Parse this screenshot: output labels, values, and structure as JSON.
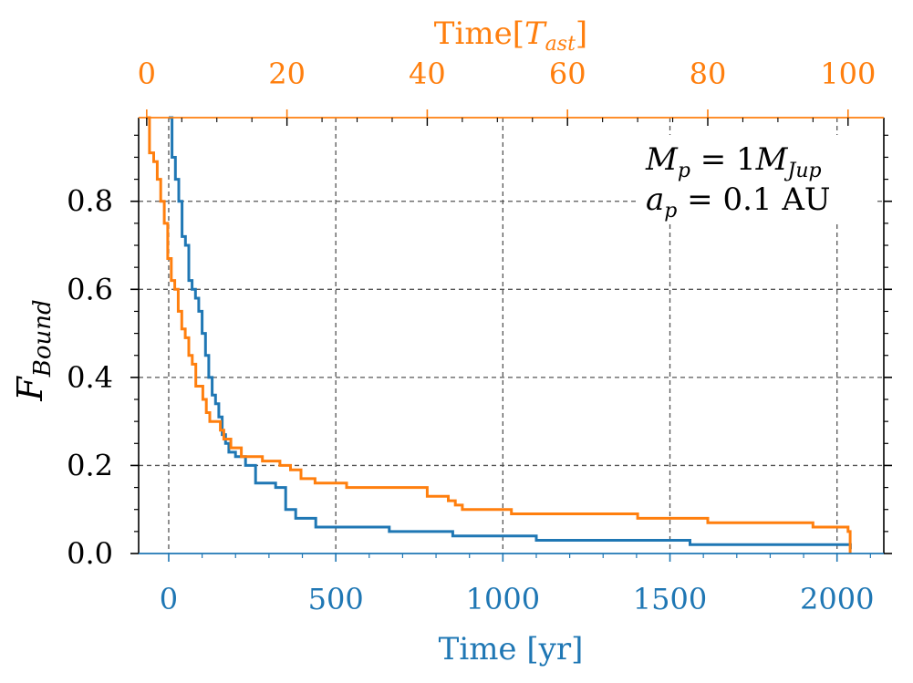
{
  "chart_data": {
    "type": "line",
    "xlabel": "Time [yr]",
    "x2label": "Time[T_ast]",
    "x2label_parts": {
      "main": "Time[",
      "T": "T",
      "sub": "ast",
      "close": "]"
    },
    "ylabel": "F_Bound",
    "ylabel_parts": {
      "F": "F",
      "sub": "Bound"
    },
    "xlim": [
      -90,
      2140
    ],
    "x2lim": [
      -1.15,
      105.1
    ],
    "ylim": [
      0.0,
      0.99
    ],
    "xticks": [
      0,
      500,
      1000,
      1500,
      2000
    ],
    "xtick_labels": [
      "0",
      "500",
      "1000",
      "1500",
      "2000"
    ],
    "x2ticks": [
      0,
      20,
      40,
      60,
      80,
      100
    ],
    "x2tick_labels": [
      "0",
      "20",
      "40",
      "60",
      "80",
      "100"
    ],
    "yticks": [
      0.0,
      0.2,
      0.4,
      0.6,
      0.8
    ],
    "ytick_labels": [
      "0.0",
      "0.2",
      "0.4",
      "0.6",
      "0.8"
    ],
    "grid": true,
    "annotation": {
      "line1": {
        "var": "M",
        "var_sub": "p",
        "eq": " = 1",
        "unit": "M",
        "unit_sub": "Jup"
      },
      "line2": {
        "var": "a",
        "var_sub": "p",
        "eq": " = 0.1 AU"
      },
      "placement": "top-right"
    },
    "series": [
      {
        "name": "Time [yr]",
        "axis": "bottom",
        "color": "#1f77b4",
        "x": [
          0,
          10,
          20,
          30,
          40,
          50,
          60,
          70,
          80,
          90,
          100,
          110,
          120,
          130,
          140,
          150,
          160,
          170,
          180,
          200,
          230,
          260,
          320,
          350,
          380,
          440,
          660,
          850,
          1100,
          1560,
          2040
        ],
        "y": [
          0.99,
          0.9,
          0.85,
          0.8,
          0.72,
          0.7,
          0.62,
          0.6,
          0.58,
          0.55,
          0.5,
          0.45,
          0.4,
          0.36,
          0.34,
          0.31,
          0.27,
          0.25,
          0.23,
          0.22,
          0.2,
          0.16,
          0.15,
          0.1,
          0.08,
          0.06,
          0.05,
          0.04,
          0.03,
          0.02,
          0.01
        ]
      },
      {
        "name": "Time[T_ast]",
        "axis": "top",
        "color": "#ff7f0e",
        "x": [
          0.0,
          0.4,
          1.0,
          1.5,
          2.0,
          2.5,
          3.0,
          3.5,
          4.0,
          4.5,
          5.0,
          5.5,
          6.0,
          6.5,
          7.0,
          8.0,
          8.5,
          9.0,
          10.5,
          11.0,
          12.0,
          13.5,
          16.5,
          19.0,
          20.5,
          22.0,
          24.0,
          28.5,
          40.0,
          43.0,
          44.0,
          45.0,
          52.0,
          70.0,
          80.0,
          95.0,
          100.0,
          100.3
        ],
        "y": [
          0.99,
          0.91,
          0.89,
          0.85,
          0.8,
          0.75,
          0.67,
          0.62,
          0.6,
          0.55,
          0.51,
          0.49,
          0.45,
          0.43,
          0.38,
          0.35,
          0.32,
          0.3,
          0.28,
          0.26,
          0.24,
          0.22,
          0.21,
          0.2,
          0.19,
          0.17,
          0.16,
          0.15,
          0.13,
          0.12,
          0.11,
          0.1,
          0.09,
          0.08,
          0.07,
          0.06,
          0.05,
          0.0
        ]
      }
    ]
  }
}
